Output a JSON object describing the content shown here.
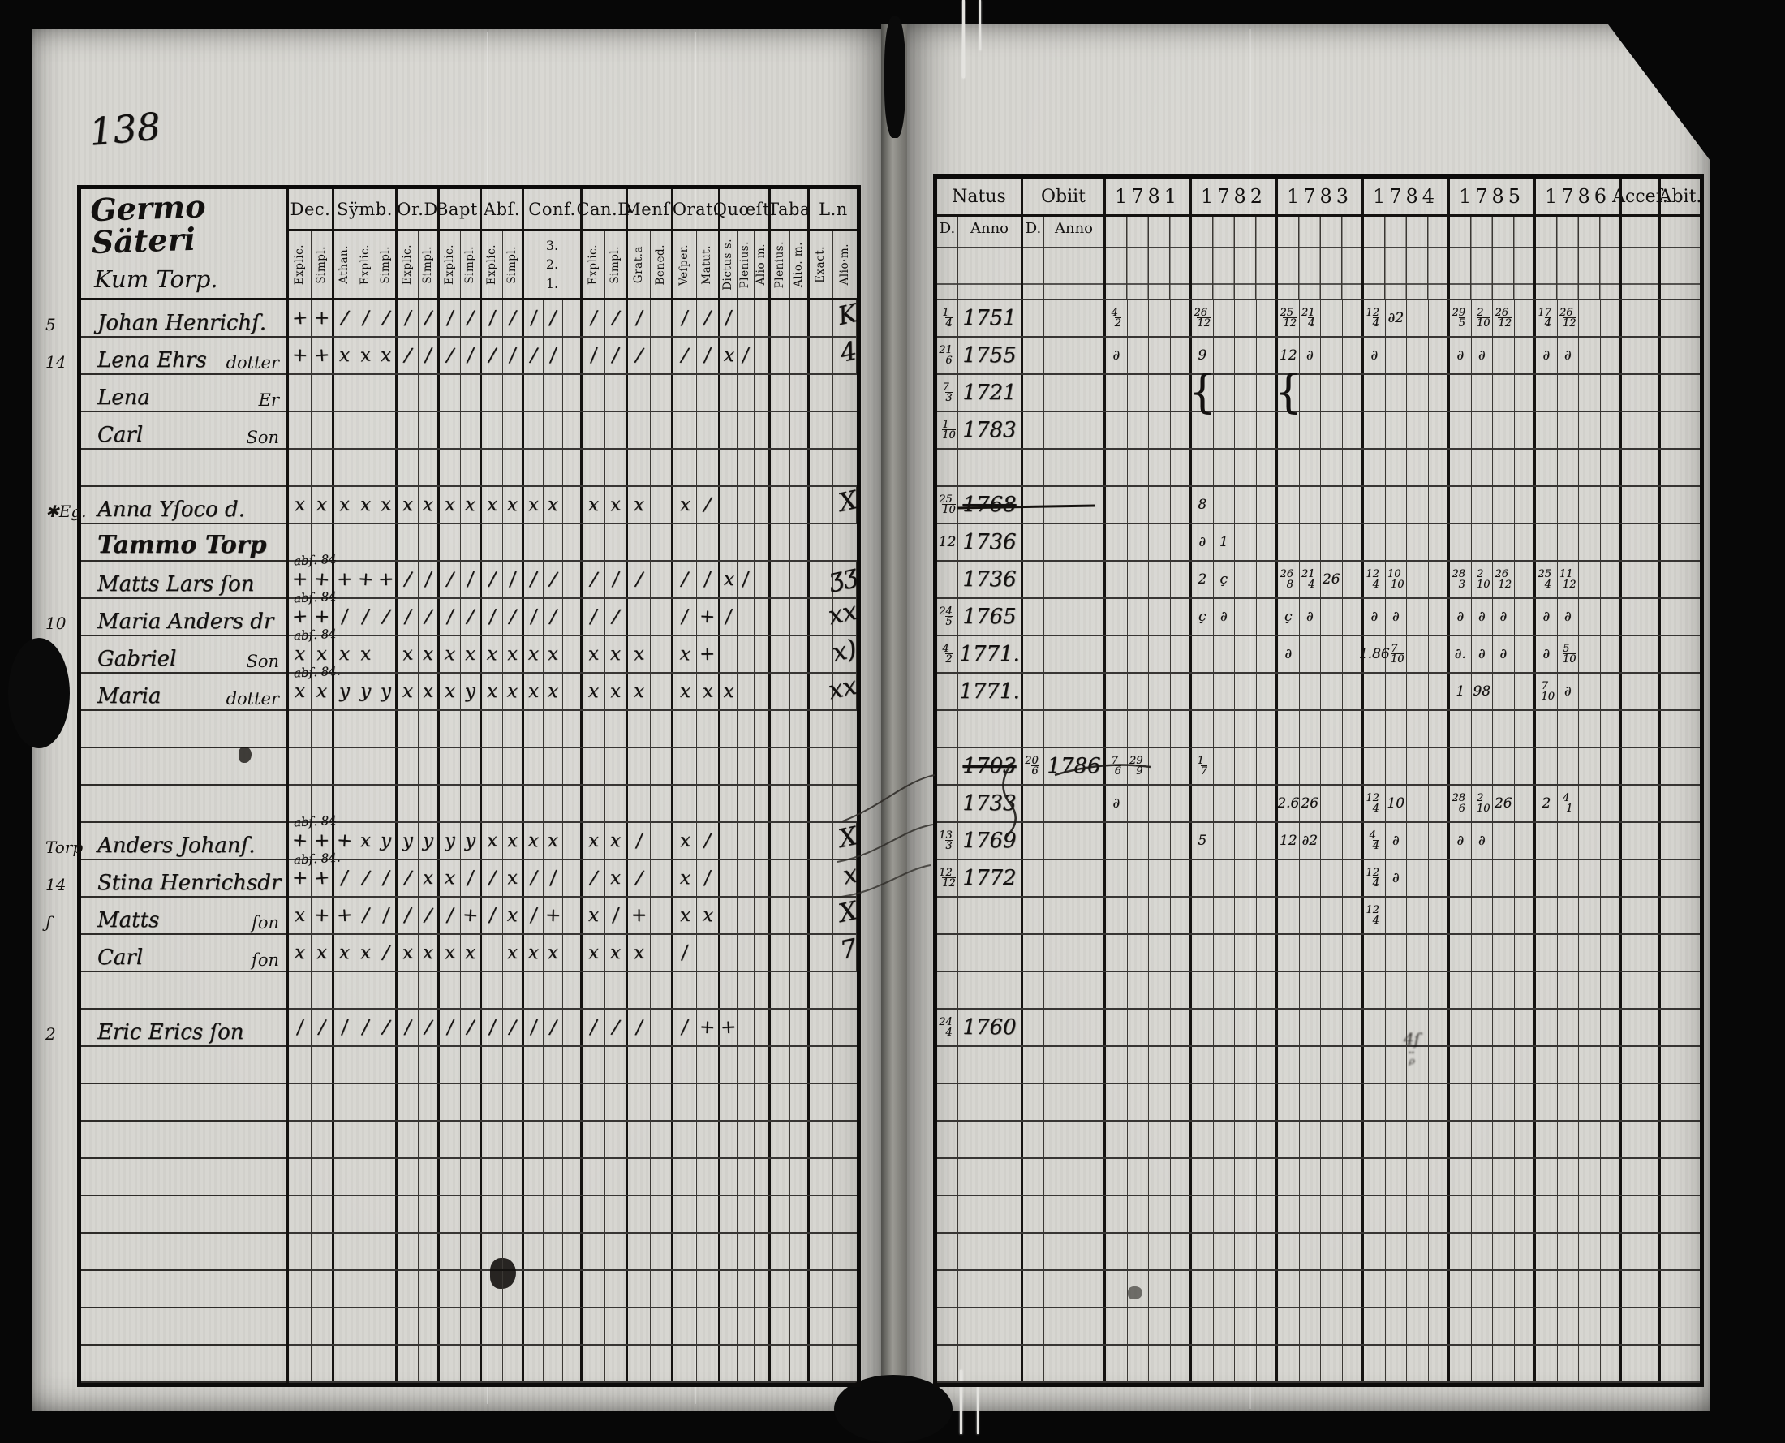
{
  "page_number": "138",
  "left_page": {
    "estate_title": "Germo Säteri",
    "estate_subtitle": "Kum Torp.",
    "columns": [
      {
        "label": "Dec.",
        "subs": [
          "Explic.",
          "Simpl."
        ]
      },
      {
        "label": "Sÿmb.",
        "subs": [
          "Athan.",
          "Explic.",
          "Simpl."
        ]
      },
      {
        "label": "Or.D",
        "subs": [
          "Explic.",
          "Simpl."
        ]
      },
      {
        "label": "Bapt.",
        "subs": [
          "Explic.",
          "Simpl."
        ]
      },
      {
        "label": "Abſ.",
        "subs": [
          "Explic.",
          "Simpl."
        ]
      },
      {
        "label": "Conf.",
        "subs": [
          "3.",
          "2.",
          "1."
        ],
        "stacked": true
      },
      {
        "label": "Can.D",
        "subs": [
          "Explic.",
          "Simpl."
        ]
      },
      {
        "label": "Menſ.",
        "subs": [
          "Grat.a",
          "Bened."
        ]
      },
      {
        "label": "Orat.",
        "subs": [
          "Veſper.",
          "Matut."
        ]
      },
      {
        "label": "Quœſt.",
        "subs": [
          "Dictus s.",
          "Plenius.",
          "Alio m."
        ]
      },
      {
        "label": "Taba",
        "subs": [
          "Plenius.",
          "Alio. m."
        ]
      },
      {
        "label": "L.n",
        "subs": [
          "Exact.",
          "Alio·m."
        ]
      }
    ],
    "rows": [
      {
        "margin": "5",
        "name": "Johan Henrichſ.",
        "ln": "K",
        "marks": [
          "+",
          "+",
          "/",
          "/",
          "/",
          "/",
          "/",
          "/",
          "/",
          "/",
          "/",
          "/",
          "/",
          "",
          "/",
          "/",
          "/",
          "",
          "/",
          "/",
          "/",
          "",
          "",
          "",
          "",
          "",
          ""
        ]
      },
      {
        "margin": "14",
        "name": "Lena Ehrs",
        "relation": "dotter",
        "ln": "4",
        "marks": [
          "+",
          "+",
          "x",
          "x",
          "x",
          "/",
          "/",
          "/",
          "/",
          "/",
          "/",
          "/",
          "/",
          "",
          "/",
          "/",
          "/",
          "",
          "/",
          "/",
          "x",
          "/",
          "",
          "",
          "",
          "",
          ""
        ]
      },
      {
        "name": "Lena",
        "relation": "Er"
      },
      {
        "name": "Carl",
        "relation": "Son"
      },
      {},
      {
        "margin": "✱Eg.",
        "name": "Anna Yſoco d.",
        "ln": "X",
        "marks": [
          "x",
          "x",
          "x",
          "x",
          "x",
          "x",
          "x",
          "x",
          "x",
          "x",
          "x",
          "x",
          "x",
          "",
          "x",
          "x",
          "x",
          "",
          "x",
          "/",
          "",
          "",
          "",
          "",
          "",
          "",
          ""
        ]
      },
      {
        "script": "Tammo Torp"
      },
      {
        "name": "Matts Lars ſon",
        "ann": "abſ. 84",
        "ln": "ʒʒ",
        "marks": [
          "+",
          "+",
          "+",
          "+",
          "+",
          "/",
          "/",
          "/",
          "/",
          "/",
          "/",
          "/",
          "/",
          "",
          "/",
          "/",
          "/",
          "",
          "/",
          "/",
          "x",
          "/",
          "",
          "",
          "",
          "",
          ""
        ]
      },
      {
        "margin": "10",
        "name": "Maria Anders dr",
        "ann": "abſ. 84",
        "ln": "xx",
        "marks": [
          "+",
          "+",
          "/",
          "/",
          "/",
          "/",
          "/",
          "/",
          "/",
          "/",
          "/",
          "/",
          "/",
          "",
          "/",
          "/",
          "",
          "",
          "/",
          "+",
          "/",
          "",
          "",
          "",
          "",
          "",
          ""
        ]
      },
      {
        "name": "Gabriel",
        "relation": "Son",
        "ann": "abſ. 84",
        "ln": "x)",
        "marks": [
          "x",
          "x",
          "x",
          "x",
          "",
          "x",
          "x",
          "x",
          "x",
          "x",
          "x",
          "x",
          "x",
          "",
          "x",
          "x",
          "x",
          "",
          "x",
          "+",
          "",
          "",
          "",
          "",
          "",
          "",
          ""
        ]
      },
      {
        "name": "Maria",
        "relation": "dotter",
        "ann": "abſ. 84.",
        "ln": "xx",
        "marks": [
          "x",
          "x",
          "y",
          "y",
          "y",
          "x",
          "x",
          "x",
          "y",
          "x",
          "x",
          "x",
          "x",
          "",
          "x",
          "x",
          "x",
          "",
          "x",
          "x",
          "x",
          "",
          "",
          "",
          "",
          "",
          ""
        ]
      },
      {},
      {},
      {},
      {
        "margin": "Torp",
        "name": "Anders Johanſ.",
        "ann": "abſ. 84",
        "ln": "X",
        "marks": [
          "+",
          "+",
          "+",
          "x",
          "y",
          "y",
          "y",
          "y",
          "y",
          "x",
          "x",
          "x",
          "x",
          "",
          "x",
          "x",
          "/",
          "",
          "x",
          "/",
          "",
          "",
          "",
          "",
          "",
          "",
          ""
        ]
      },
      {
        "margin": "14",
        "name": "Stina Henrichsdr",
        "ann": "abſ. 84.",
        "ln": "x",
        "marks": [
          "+",
          "+",
          "/",
          "/",
          "/",
          "/",
          "x",
          "x",
          "/",
          "/",
          "x",
          "/",
          "/",
          "",
          "/",
          "x",
          "/",
          "",
          "x",
          "/",
          "",
          "",
          "",
          "",
          "",
          "",
          ""
        ]
      },
      {
        "margin": "ƒ",
        "name": "Matts",
        "relation": "ſon",
        "ln": "X",
        "marks": [
          "x",
          "+",
          "+",
          "/",
          "/",
          "/",
          "/",
          "/",
          "+",
          "/",
          "x",
          "/",
          "+",
          "",
          "x",
          "/",
          "+",
          "",
          "x",
          "x",
          "",
          "",
          "",
          "",
          "",
          "",
          ""
        ]
      },
      {
        "name": "Carl",
        "relation": "ſon",
        "ln": "7",
        "marks": [
          "x",
          "x",
          "x",
          "x",
          "/",
          "x",
          "x",
          "x",
          "x",
          "",
          "x",
          "x",
          "x",
          "",
          "x",
          "x",
          "x",
          "",
          "/",
          "",
          "",
          "",
          "",
          "",
          "",
          "",
          ""
        ]
      },
      {},
      {
        "margin": "2",
        "name": "Eric Erics ſon",
        "marks": [
          "/",
          "/",
          "/",
          "/",
          "/",
          "/",
          "/",
          "/",
          "/",
          "/",
          "/",
          "/",
          "/",
          "",
          "/",
          "/",
          "/",
          "",
          "/",
          "+",
          "+",
          "",
          "",
          "",
          "",
          "",
          ""
        ]
      },
      {},
      {},
      {},
      {},
      {},
      {},
      {},
      {},
      {}
    ]
  },
  "right_page": {
    "col_natus": {
      "label": "Natus",
      "subs": [
        "D.",
        "Anno"
      ]
    },
    "col_obiit": {
      "label": "Obiit",
      "subs": [
        "D.",
        "Anno"
      ]
    },
    "years": [
      "1781",
      "1782",
      "1783",
      "1784",
      "1785",
      "1786"
    ],
    "col_acce": "Acceſ.",
    "col_abit": "Abit.",
    "rows": [
      {
        "natus_d": "1/4",
        "natus_anno": "1751",
        "years": {
          "1781": [
            "4/2"
          ],
          "1782": [
            "26/12"
          ],
          "1783": [
            "25/12",
            "21/4"
          ],
          "1784": [
            "12/4",
            "∂2"
          ],
          "1785": [
            "29/5",
            "2/10",
            "26/12"
          ],
          "1786": [
            "17/4",
            "26/12"
          ]
        }
      },
      {
        "natus_d": "21/6",
        "natus_anno": "1755",
        "years": {
          "1781": [
            "∂"
          ],
          "1782": [
            "9"
          ],
          "1783": [
            "12",
            "∂"
          ],
          "1784": [
            "∂"
          ],
          "1785": [
            "∂",
            "∂"
          ],
          "1786": [
            "∂",
            "∂"
          ]
        }
      },
      {
        "natus_d": "7/3",
        "natus_anno": "1721",
        "years": {
          "1782": [
            "{"
          ],
          "1783": [
            "{"
          ]
        }
      },
      {
        "natus_d": "1/10",
        "natus_anno": "1783",
        "years": {}
      },
      {},
      {
        "natus_d": "25/10",
        "natus_anno": "1768",
        "natus_struck": true,
        "years": {
          "1782": [
            "8"
          ]
        }
      },
      {
        "natus_d": "12",
        "natus_anno": "1736",
        "years": {
          "1782": [
            "∂",
            "1"
          ]
        }
      },
      {
        "natus_anno": "1736",
        "years": {
          "1782": [
            "2",
            "ç"
          ],
          "1783": [
            "26/8",
            "21/4",
            "26"
          ],
          "1784": [
            "12/4",
            "10/10"
          ],
          "1785": [
            "28/3",
            "2/10",
            "26/12"
          ],
          "1786": [
            "25/4",
            "11/12"
          ]
        }
      },
      {
        "natus_d": "24/5",
        "natus_anno": "1765",
        "years": {
          "1782": [
            "ç",
            "∂"
          ],
          "1783": [
            "ç",
            "∂"
          ],
          "1784": [
            "∂",
            "∂"
          ],
          "1785": [
            "∂",
            "∂",
            "∂"
          ],
          "1786": [
            "∂",
            "∂"
          ]
        }
      },
      {
        "natus_d": "4/2",
        "natus_anno": "1771.",
        "years": {
          "1783": [
            "∂"
          ],
          "1784": [
            "1.86",
            "7/10"
          ],
          "1785": [
            "∂.",
            "∂",
            "∂"
          ],
          "1786": [
            "∂",
            "5/10"
          ]
        }
      },
      {
        "natus_anno": "1771.",
        "years": {
          "1785": [
            "1",
            "98"
          ],
          "1786": [
            "7/10",
            "∂"
          ]
        }
      },
      {},
      {
        "natus_anno": "1703",
        "natus_struck": true,
        "obiit_d": "20/6",
        "obiit_anno": "1786",
        "years": {
          "1781": [
            "7/6",
            "29/9"
          ],
          "1782": [
            "1/7"
          ]
        }
      },
      {
        "natus_anno": "1733",
        "years": {
          "1781": [
            "∂"
          ],
          "1783": [
            "2.6",
            "26"
          ],
          "1784": [
            "12/4",
            "10"
          ],
          "1785": [
            "28/6",
            "2/10",
            "26"
          ],
          "1786": [
            "2",
            "4/1"
          ]
        }
      },
      {
        "natus_d": "13/3",
        "natus_anno": "1769",
        "years": {
          "1782": [
            "5"
          ],
          "1783": [
            "12",
            "∂2"
          ],
          "1784": [
            "4/4",
            "∂"
          ],
          "1785": [
            "∂",
            "∂"
          ]
        }
      },
      {
        "natus_d": "12/12",
        "natus_anno": "1772",
        "years": {
          "1784": [
            "12/4",
            "∂"
          ]
        }
      },
      {
        "years": {
          "1784": [
            "12/4"
          ]
        }
      },
      {},
      {},
      {
        "natus_d": "24/4",
        "natus_anno": "1760",
        "years": {}
      },
      {},
      {},
      {},
      {},
      {},
      {},
      {},
      {},
      {}
    ]
  }
}
